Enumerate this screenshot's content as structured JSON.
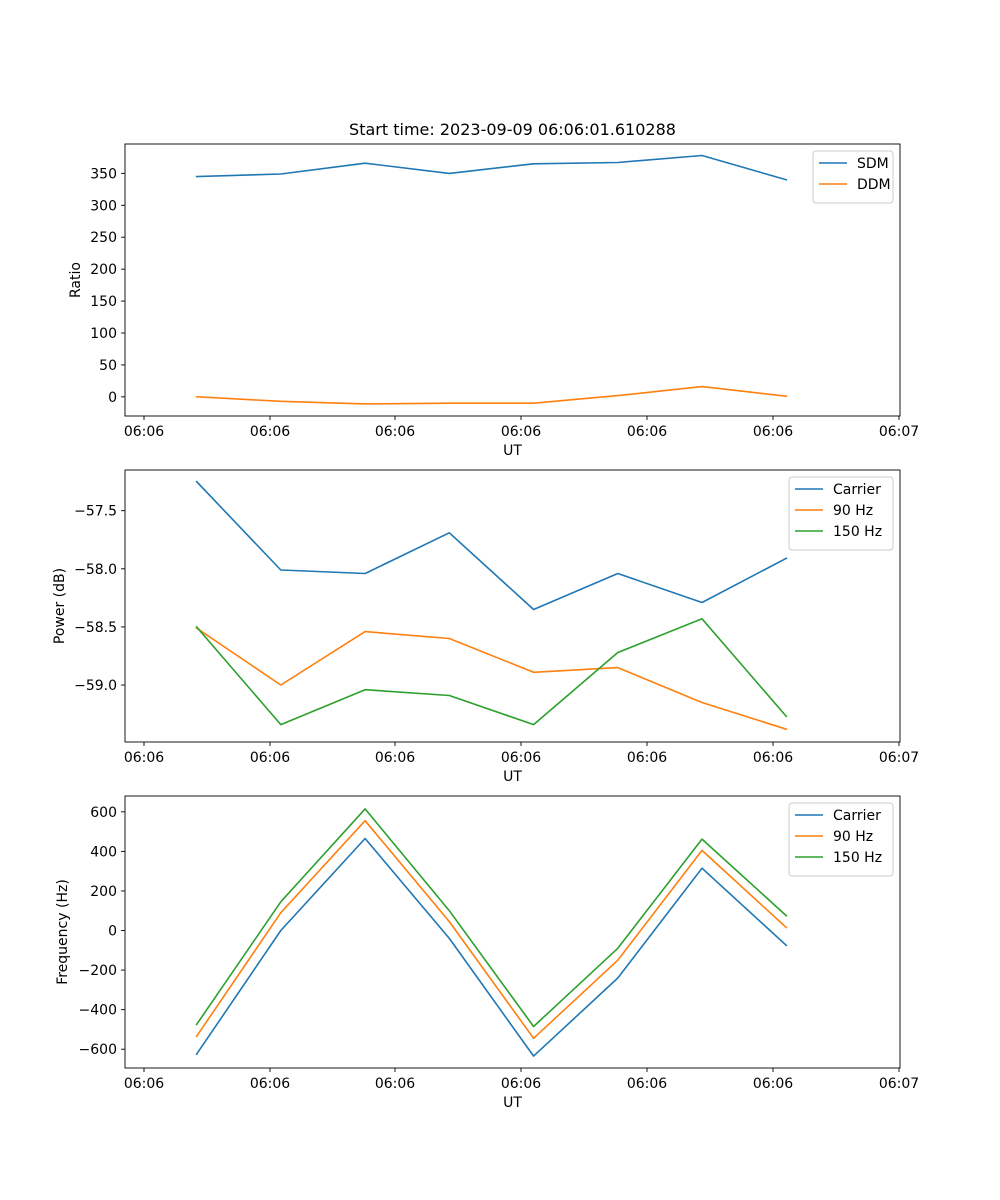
{
  "chart_data": [
    {
      "type": "line",
      "title": "Start time: 2023-09-09 06:06:01.610288",
      "xlabel": "UT",
      "ylabel": "Ratio",
      "xticks": [
        "06:06",
        "06:06",
        "06:06",
        "06:06",
        "06:06",
        "06:06",
        "06:07"
      ],
      "yticks": [
        "0",
        "50",
        "100",
        "150",
        "200",
        "250",
        "300",
        "350"
      ],
      "ylim": [
        -30,
        396
      ],
      "xlim": [
        -0.85,
        8.35
      ],
      "x": [
        0,
        1,
        2,
        3,
        4,
        5,
        6,
        7
      ],
      "legend_position": "top-right",
      "series": [
        {
          "name": "SDM",
          "color": "#1f77b4",
          "values": [
            345,
            349,
            366,
            350,
            365,
            367,
            378,
            340
          ]
        },
        {
          "name": "DDM",
          "color": "#ff7f0e",
          "values": [
            0,
            -7,
            -11,
            -10,
            -10,
            2,
            16,
            1
          ]
        }
      ]
    },
    {
      "type": "line",
      "title": "",
      "xlabel": "UT",
      "ylabel": "Power (dB)",
      "xticks": [
        "06:06",
        "06:06",
        "06:06",
        "06:06",
        "06:06",
        "06:06",
        "06:07"
      ],
      "yticks": [
        "−57.5",
        "−58.0",
        "−58.5",
        "−59.0"
      ],
      "ylim": [
        -59.49,
        -57.15
      ],
      "xlim": [
        -0.85,
        8.35
      ],
      "x": [
        0,
        1,
        2,
        3,
        4,
        5,
        6,
        7
      ],
      "legend_position": "top-right",
      "series": [
        {
          "name": "Carrier",
          "color": "#1f77b4",
          "values": [
            -57.25,
            -58.01,
            -58.04,
            -57.69,
            -58.35,
            -58.04,
            -58.29,
            -57.91
          ]
        },
        {
          "name": "90 Hz",
          "color": "#ff7f0e",
          "values": [
            -58.51,
            -59.0,
            -58.54,
            -58.6,
            -58.89,
            -58.85,
            -59.15,
            -59.38
          ]
        },
        {
          "name": "150 Hz",
          "color": "#2ca02c",
          "values": [
            -58.5,
            -59.34,
            -59.04,
            -59.09,
            -59.34,
            -58.72,
            -58.43,
            -59.27
          ]
        }
      ]
    },
    {
      "type": "line",
      "title": "",
      "xlabel": "UT",
      "ylabel": "Frequency (Hz)",
      "xticks": [
        "06:06",
        "06:06",
        "06:06",
        "06:06",
        "06:06",
        "06:06",
        "06:07"
      ],
      "yticks": [
        "−600",
        "−400",
        "−200",
        "0",
        "200",
        "400",
        "600"
      ],
      "ylim": [
        -695,
        680
      ],
      "xlim": [
        -0.85,
        8.35
      ],
      "x": [
        0,
        1,
        2,
        3,
        4,
        5,
        6,
        7
      ],
      "legend_position": "top-right",
      "series": [
        {
          "name": "Carrier",
          "color": "#1f77b4",
          "values": [
            -625,
            0,
            465,
            -40,
            -635,
            -240,
            315,
            -75
          ]
        },
        {
          "name": "90 Hz",
          "color": "#ff7f0e",
          "values": [
            -535,
            90,
            555,
            45,
            -545,
            -150,
            405,
            15
          ]
        },
        {
          "name": "150 Hz",
          "color": "#2ca02c",
          "values": [
            -475,
            145,
            615,
            100,
            -485,
            -90,
            462,
            75
          ]
        }
      ]
    }
  ]
}
